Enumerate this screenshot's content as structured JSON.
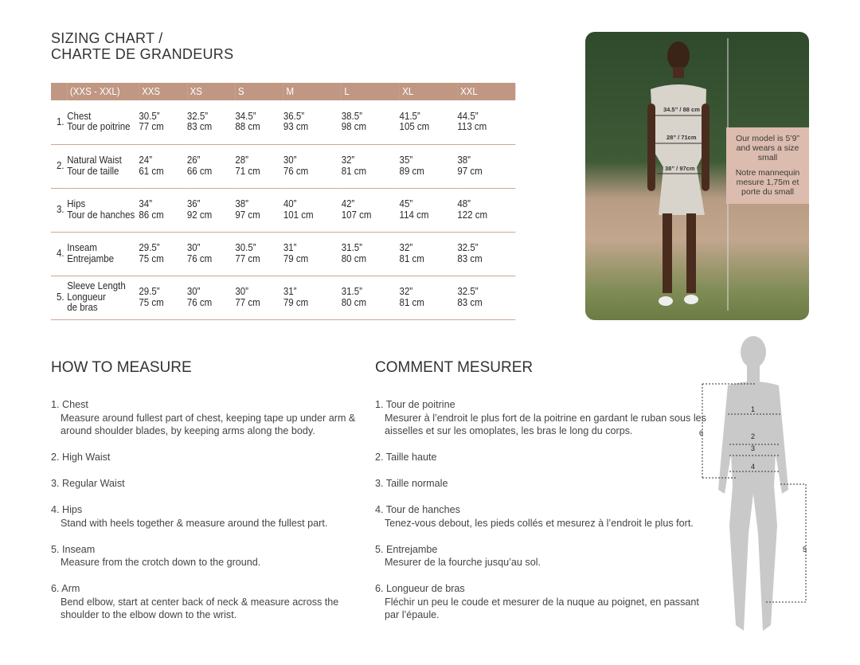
{
  "title": {
    "line1": "SIZING CHART /",
    "line2": "CHARTE DE GRANDEURS"
  },
  "table": {
    "headers": [
      "(XXS - XXL)",
      "XXS",
      "XS",
      "S",
      "M",
      "L",
      "XL",
      "XXL"
    ],
    "rows": [
      {
        "num": "1.",
        "en": "Chest",
        "fr": "Tour de poitrine",
        "values": [
          [
            "30.5”",
            "77 cm"
          ],
          [
            "32.5”",
            "83 cm"
          ],
          [
            "34.5”",
            "88 cm"
          ],
          [
            "36.5”",
            "93 cm"
          ],
          [
            "38.5”",
            "98 cm"
          ],
          [
            "41.5”",
            "105 cm"
          ],
          [
            "44.5”",
            "113 cm"
          ]
        ]
      },
      {
        "num": "2.",
        "en": "Natural Waist",
        "fr": "Tour de taille",
        "values": [
          [
            "24”",
            "61 cm"
          ],
          [
            "26”",
            "66 cm"
          ],
          [
            "28”",
            "71 cm"
          ],
          [
            "30”",
            "76 cm"
          ],
          [
            "32”",
            "81 cm"
          ],
          [
            "35”",
            "89 cm"
          ],
          [
            "38”",
            "97 cm"
          ]
        ]
      },
      {
        "num": "3.",
        "en": "Hips",
        "fr": "Tour de hanches",
        "values": [
          [
            "34”",
            "86 cm"
          ],
          [
            "36”",
            "92 cm"
          ],
          [
            "38”",
            "97 cm"
          ],
          [
            "40”",
            "101 cm"
          ],
          [
            "42”",
            "107 cm"
          ],
          [
            "45”",
            "114 cm"
          ],
          [
            "48”",
            "122 cm"
          ]
        ]
      },
      {
        "num": "4.",
        "en": "Inseam",
        "fr": "Entrejambe",
        "values": [
          [
            "29.5”",
            "75 cm"
          ],
          [
            "30”",
            "76 cm"
          ],
          [
            "30.5”",
            "77 cm"
          ],
          [
            "31”",
            "79 cm"
          ],
          [
            "31.5”",
            "80 cm"
          ],
          [
            "32”",
            "81 cm"
          ],
          [
            "32.5”",
            "83 cm"
          ]
        ]
      },
      {
        "num": "5.",
        "en": "Sleeve Length",
        "fr": "Longueur de bras",
        "values": [
          [
            "29.5”",
            "75 cm"
          ],
          [
            "30”",
            "76 cm"
          ],
          [
            "30”",
            "77 cm"
          ],
          [
            "31”",
            "79 cm"
          ],
          [
            "31.5”",
            "80 cm"
          ],
          [
            "32”",
            "81 cm"
          ],
          [
            "32.5”",
            "83 cm"
          ]
        ]
      }
    ]
  },
  "photo": {
    "chest": "34.5” / 88 cm",
    "waist": "28” / 71cm",
    "hips": "38” / 97cm",
    "model_en": "Our model is 5’9” and wears a size small",
    "model_fr": "Notre mannequin mesure 1,75m et porte du small"
  },
  "how": {
    "title": "HOW TO MEASURE",
    "steps": [
      {
        "t": "1. Chest",
        "d": "Measure around fullest part of chest, keeping tape up under arm & around shoulder blades, by keeping arms along the body."
      },
      {
        "t": "2. High Waist",
        "d": ""
      },
      {
        "t": "3. Regular Waist",
        "d": ""
      },
      {
        "t": "4. Hips",
        "d": "Stand with heels together & measure around the fullest part."
      },
      {
        "t": "5. Inseam",
        "d": "Measure from the crotch down to the ground."
      },
      {
        "t": "6. Arm",
        "d": "Bend elbow, start at center back of neck & measure across the shoulder to the elbow down to the wrist."
      }
    ]
  },
  "comment": {
    "title": "COMMENT MESURER",
    "steps": [
      {
        "t": "1. Tour de poitrine",
        "d": "Mesurer à l’endroit le plus fort de la poitrine en gardant le ruban sous les aisselles et sur les omoplates, les bras le long du corps."
      },
      {
        "t": "2. Taille haute",
        "d": ""
      },
      {
        "t": "3. Taille normale",
        "d": ""
      },
      {
        "t": "4. Tour de hanches",
        "d": "Tenez-vous debout, les pieds collés et mesurez à l’endroit le plus fort."
      },
      {
        "t": "5. Entrejambe",
        "d": "Mesurer de la fourche jusqu’au sol."
      },
      {
        "t": "6. Longueur de bras",
        "d": "Fléchir un peu le coude et mesurer de la nuque au poignet, en passant par l’épaule."
      }
    ]
  },
  "figure": {
    "labels": [
      "1",
      "2",
      "3",
      "4",
      "5",
      "6"
    ]
  }
}
